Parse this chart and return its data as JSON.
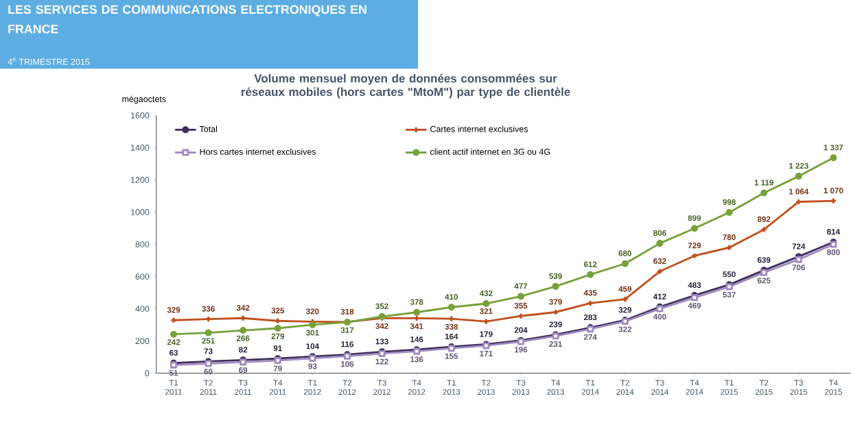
{
  "chart_data": {
    "type": "line",
    "title": "Volume mensuel moyen de données consommées sur réseaux mobiles (hors cartes \"MtoM\") par type de clientèle",
    "annotations": [
      "LES SERVICES DE COMMUNICATIONS ELECTRONIQUES EN FRANCE",
      "4$^{e}$ TRIMESTRE 2015"
    ],
    "ylabel": "mégaoctets",
    "categories": [
      "T1 2011",
      "T2 2011",
      "T3 2011",
      "T4 2011",
      "T1 2012",
      "T2 2012",
      "T3 2012",
      "T4 2012",
      "T1 2013",
      "T2 2013",
      "T3 2013",
      "T4 2013",
      "T1 2014",
      "T2 2014",
      "T3 2014",
      "T4 2014",
      "T1 2015",
      "T2 2015",
      "T3 2015",
      "T4 2015"
    ],
    "series": [
      {
        "name": "Total",
        "color": "#3d2f5b",
        "marker": "circle",
        "values": [
          63,
          73,
          82,
          91,
          104,
          116,
          133,
          146,
          164,
          179,
          204,
          239,
          283,
          329,
          412,
          483,
          550,
          639,
          724,
          814
        ],
        "value_labels": [
          "63",
          "73",
          "82",
          "91",
          "104",
          "116",
          "133",
          "146",
          "164",
          "179",
          "204",
          "239",
          "283",
          "329",
          "412",
          "483",
          "550",
          "639",
          "724",
          "814"
        ]
      },
      {
        "name": "Cartes internet exclusives",
        "color": "#c0501f",
        "marker": "cross",
        "values": [
          329,
          336,
          342,
          325,
          320,
          318,
          342,
          341,
          338,
          321,
          355,
          379,
          435,
          459,
          632,
          729,
          780,
          892,
          1064,
          1070
        ],
        "value_labels": [
          "329",
          "336",
          "342",
          "325",
          "320",
          "318",
          "342",
          "341",
          "338",
          "321",
          "355",
          "379",
          "435",
          "459",
          "632",
          "729",
          "780",
          "892",
          "1 064",
          "1 070"
        ]
      },
      {
        "name": "Hors cartes internet exclusives",
        "color": "#a08cc0",
        "marker": "square",
        "values": [
          51,
          60,
          69,
          79,
          93,
          106,
          122,
          136,
          155,
          171,
          196,
          231,
          274,
          322,
          400,
          469,
          537,
          625,
          706,
          800
        ],
        "value_labels": [
          "51",
          "60",
          "69",
          "79",
          "93",
          "106",
          "122",
          "136",
          "155",
          "171",
          "196",
          "231",
          "274",
          "322",
          "400",
          "469",
          "537",
          "625",
          "706",
          "800"
        ]
      },
      {
        "name": "client actif internet en 3G ou 4G",
        "color": "#77a13b",
        "marker": "circle",
        "values": [
          242,
          251,
          266,
          279,
          301,
          317,
          352,
          378,
          410,
          432,
          477,
          539,
          612,
          680,
          806,
          899,
          998,
          1119,
          1223,
          1337
        ],
        "value_labels": [
          "242",
          "251",
          "266",
          "279",
          "301",
          "317",
          "352",
          "378",
          "410",
          "432",
          "477",
          "539",
          "612",
          "680",
          "806",
          "899",
          "998",
          "1 119",
          "1 223",
          "1 337"
        ]
      }
    ],
    "ylim": [
      0,
      1600
    ],
    "yticks": [
      0,
      200,
      400,
      600,
      800,
      1000,
      1200,
      1400,
      1600
    ],
    "legend": "top",
    "grid": false
  }
}
